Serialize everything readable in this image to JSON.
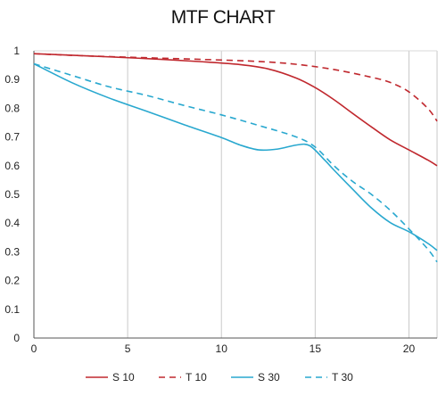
{
  "chart_data": {
    "type": "line",
    "title": "MTF CHART",
    "xlabel": "",
    "ylabel": "",
    "xlim": [
      0,
      21.5
    ],
    "ylim": [
      0,
      1
    ],
    "x_ticks": [
      0,
      5,
      10,
      15,
      20
    ],
    "y_ticks": [
      0,
      0.1,
      0.2,
      0.3,
      0.4,
      0.5,
      0.6,
      0.7,
      0.8,
      0.9,
      1
    ],
    "y_tick_labels": [
      "0",
      "0.1",
      "0.2",
      "0.3",
      "0.4",
      "0.5",
      "0.6",
      "0.7",
      "0.8",
      "0.9",
      "1"
    ],
    "grid": "vertical",
    "legend": "bottom",
    "series": [
      {
        "name": "S 10",
        "color": "#c0282e",
        "dash": "solid",
        "points": [
          [
            0,
            0.99
          ],
          [
            3,
            0.982
          ],
          [
            6,
            0.973
          ],
          [
            9,
            0.962
          ],
          [
            11,
            0.952
          ],
          [
            12.5,
            0.937
          ],
          [
            14,
            0.905
          ],
          [
            15,
            0.872
          ],
          [
            16,
            0.83
          ],
          [
            17,
            0.782
          ],
          [
            18,
            0.735
          ],
          [
            19,
            0.69
          ],
          [
            20,
            0.655
          ],
          [
            21,
            0.62
          ],
          [
            21.5,
            0.6
          ]
        ]
      },
      {
        "name": "T 10",
        "color": "#c0282e",
        "dash": "dashed",
        "points": [
          [
            0,
            0.99
          ],
          [
            3,
            0.982
          ],
          [
            6,
            0.976
          ],
          [
            9,
            0.97
          ],
          [
            12,
            0.963
          ],
          [
            14,
            0.953
          ],
          [
            16,
            0.935
          ],
          [
            18,
            0.908
          ],
          [
            19,
            0.89
          ],
          [
            20,
            0.857
          ],
          [
            21,
            0.8
          ],
          [
            21.5,
            0.755
          ]
        ]
      },
      {
        "name": "S 30",
        "color": "#29a8cf",
        "dash": "solid",
        "points": [
          [
            0,
            0.955
          ],
          [
            2,
            0.89
          ],
          [
            4,
            0.836
          ],
          [
            6,
            0.79
          ],
          [
            8,
            0.743
          ],
          [
            10,
            0.698
          ],
          [
            11,
            0.672
          ],
          [
            12,
            0.655
          ],
          [
            13,
            0.658
          ],
          [
            14,
            0.672
          ],
          [
            14.7,
            0.67
          ],
          [
            15.5,
            0.62
          ],
          [
            16,
            0.585
          ],
          [
            17,
            0.518
          ],
          [
            18,
            0.453
          ],
          [
            19,
            0.402
          ],
          [
            20,
            0.37
          ],
          [
            21,
            0.33
          ],
          [
            21.5,
            0.305
          ]
        ]
      },
      {
        "name": "T 30",
        "color": "#29a8cf",
        "dash": "dashed",
        "points": [
          [
            0,
            0.955
          ],
          [
            2,
            0.915
          ],
          [
            4,
            0.875
          ],
          [
            6,
            0.845
          ],
          [
            8,
            0.81
          ],
          [
            10,
            0.777
          ],
          [
            12,
            0.74
          ],
          [
            14,
            0.7
          ],
          [
            15,
            0.665
          ],
          [
            16,
            0.6
          ],
          [
            17,
            0.545
          ],
          [
            18,
            0.5
          ],
          [
            19,
            0.445
          ],
          [
            20,
            0.38
          ],
          [
            21,
            0.31
          ],
          [
            21.5,
            0.265
          ]
        ]
      }
    ]
  }
}
